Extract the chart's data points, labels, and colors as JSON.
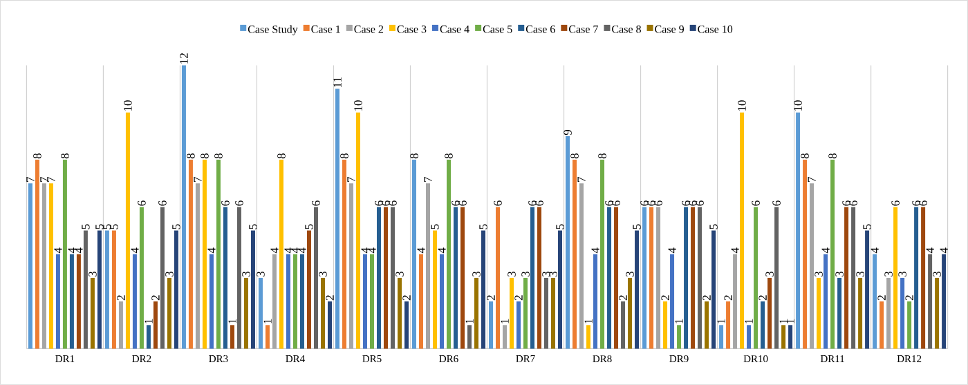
{
  "chart_data": {
    "type": "bar",
    "categories": [
      "DR1",
      "DR2",
      "DR3",
      "DR4",
      "DR5",
      "DR6",
      "DR7",
      "DR8",
      "DR9",
      "DR10",
      "DR11",
      "DR12"
    ],
    "series": [
      {
        "name": "Case Study",
        "color": "#5b9bd5",
        "values": [
          7,
          5,
          12,
          3,
          11,
          8,
          2,
          9,
          6,
          1,
          10,
          4
        ]
      },
      {
        "name": "Case 1",
        "color": "#ed7d31",
        "values": [
          8,
          5,
          8,
          1,
          8,
          4,
          6,
          8,
          6,
          2,
          8,
          2
        ]
      },
      {
        "name": "Case 2",
        "color": "#a5a5a5",
        "values": [
          7,
          2,
          7,
          4,
          7,
          7,
          1,
          7,
          6,
          4,
          7,
          3
        ]
      },
      {
        "name": "Case 3",
        "color": "#ffc000",
        "values": [
          7,
          10,
          8,
          8,
          10,
          5,
          3,
          1,
          2,
          10,
          3,
          6
        ]
      },
      {
        "name": "Case 4",
        "color": "#4472c4",
        "values": [
          4,
          4,
          4,
          4,
          4,
          4,
          2,
          4,
          4,
          1,
          4,
          3
        ]
      },
      {
        "name": "Case 5",
        "color": "#70ad47",
        "values": [
          8,
          6,
          8,
          4,
          4,
          8,
          3,
          8,
          1,
          6,
          8,
          2
        ]
      },
      {
        "name": "Case 6",
        "color": "#255e91",
        "values": [
          4,
          1,
          6,
          4,
          6,
          6,
          6,
          6,
          6,
          2,
          3,
          6
        ]
      },
      {
        "name": "Case 7",
        "color": "#9e480e",
        "values": [
          4,
          2,
          1,
          5,
          6,
          6,
          6,
          6,
          6,
          3,
          6,
          6
        ]
      },
      {
        "name": "Case 8",
        "color": "#636363",
        "values": [
          5,
          6,
          6,
          6,
          6,
          1,
          3,
          2,
          6,
          6,
          6,
          4
        ]
      },
      {
        "name": "Case 9",
        "color": "#997300",
        "values": [
          3,
          3,
          3,
          3,
          3,
          3,
          3,
          3,
          2,
          1,
          3,
          3
        ]
      },
      {
        "name": "Case 10",
        "color": "#264478",
        "values": [
          5,
          5,
          5,
          2,
          2,
          5,
          5,
          5,
          5,
          1,
          5,
          4
        ]
      }
    ],
    "data_labels": true,
    "legend": "top",
    "grid": "x",
    "tick_labels": "x"
  }
}
